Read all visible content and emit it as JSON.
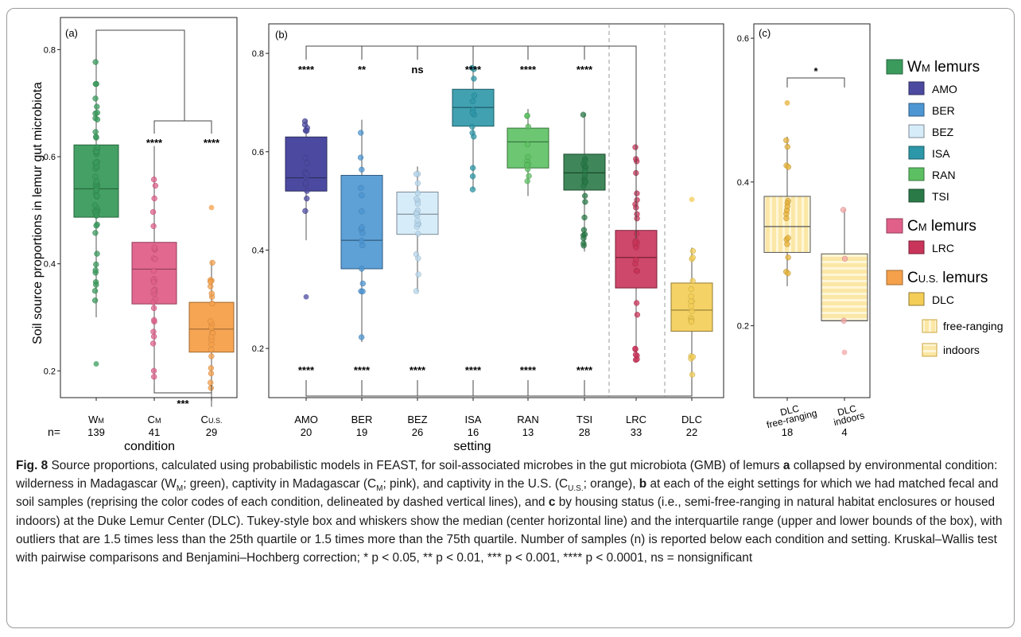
{
  "colors": {
    "WM": "#3a9b5c",
    "CM": "#e0608a",
    "CUS": "#f5a04a",
    "AMO": "#4b4aa0",
    "BER": "#4c96d3",
    "BEZ": "#cfe6f6",
    "ISA": "#2c97a8",
    "RAN": "#5cc062",
    "TSI": "#2a7a48",
    "LRC": "#c9345a",
    "DLC": "#f3cd55"
  },
  "y_axis_label": "Soil source proportions in lemur gut microbiota",
  "n_label": "n=",
  "chart_data": [
    {
      "type": "box",
      "panel_label": "(a)",
      "xlabel": "condition",
      "ylim": [
        0.15,
        0.86
      ],
      "y_ticks": [
        "0.2",
        "0.4",
        "0.6",
        "0.8"
      ],
      "categories": [
        {
          "key": "WM",
          "main": "W",
          "sub": "M",
          "n": "139",
          "min": 0.3,
          "q1": 0.487,
          "median": 0.54,
          "q3": 0.622,
          "max": 0.8,
          "outliers": [
            0.213
          ]
        },
        {
          "key": "CM",
          "main": "C",
          "sub": "M",
          "n": "41",
          "min": 0.173,
          "q1": 0.325,
          "median": 0.39,
          "q3": 0.44,
          "max": 0.62,
          "outliers": []
        },
        {
          "key": "CUS",
          "main": "C",
          "sub": "U.S.",
          "n": "29",
          "min": 0.133,
          "q1": 0.235,
          "median": 0.278,
          "q3": 0.328,
          "max": 0.405,
          "outliers": [
            0.505
          ]
        }
      ],
      "significance": {
        "top_bracket": "",
        "cm": "****",
        "cus": "****",
        "bottom": "***"
      }
    },
    {
      "type": "box",
      "panel_label": "(b)",
      "xlabel": "setting",
      "ylim": [
        0.1,
        0.86
      ],
      "y_ticks": [
        "0.2",
        "0.4",
        "0.6",
        "0.8"
      ],
      "categories": [
        {
          "key": "AMO",
          "n": "20",
          "min": 0.42,
          "q1": 0.52,
          "median": 0.547,
          "q3": 0.63,
          "max": 0.665,
          "outliers": [
            0.305
          ],
          "top": "****",
          "bottom": "****"
        },
        {
          "key": "BER",
          "n": "19",
          "min": 0.213,
          "q1": 0.362,
          "median": 0.42,
          "q3": 0.552,
          "max": 0.665,
          "outliers": [],
          "top": "**",
          "bottom": "****"
        },
        {
          "key": "BEZ",
          "n": "26",
          "min": 0.315,
          "q1": 0.432,
          "median": 0.473,
          "q3": 0.518,
          "max": 0.57,
          "outliers": [],
          "top": "ns",
          "bottom": "****"
        },
        {
          "key": "ISA",
          "n": "16",
          "min": 0.523,
          "q1": 0.652,
          "median": 0.69,
          "q3": 0.727,
          "max": 0.8,
          "outliers": [],
          "top": "****",
          "bottom": "****"
        },
        {
          "key": "RAN",
          "n": "13",
          "min": 0.51,
          "q1": 0.567,
          "median": 0.62,
          "q3": 0.648,
          "max": 0.687,
          "outliers": [],
          "top": "****",
          "bottom": "****"
        },
        {
          "key": "TSI",
          "n": "28",
          "min": 0.397,
          "q1": 0.522,
          "median": 0.557,
          "q3": 0.595,
          "max": 0.677,
          "outliers": [],
          "top": "****",
          "bottom": "****"
        },
        {
          "key": "LRC",
          "n": "33",
          "min": 0.173,
          "q1": 0.323,
          "median": 0.385,
          "q3": 0.44,
          "max": 0.622,
          "outliers": []
        },
        {
          "key": "DLC",
          "n": "22",
          "min": 0.135,
          "q1": 0.235,
          "median": 0.278,
          "q3": 0.333,
          "max": 0.405,
          "outliers": [
            0.503
          ]
        }
      ]
    },
    {
      "type": "box",
      "panel_label": "(c)",
      "ylim": [
        0.1,
        0.62
      ],
      "y_ticks": [
        "0.2",
        "0.4",
        "0.6"
      ],
      "categories": [
        {
          "key": "free",
          "label1": "DLC",
          "label2": "free-ranging",
          "n": "18",
          "min": 0.255,
          "q1": 0.302,
          "median": 0.338,
          "q3": 0.38,
          "max": 0.463,
          "outliers": [
            0.51
          ]
        },
        {
          "key": "indoors",
          "label1": "DLC",
          "label2": "indoors",
          "n": "4",
          "min": 0.207,
          "q1": 0.207,
          "median": 0.207,
          "q3": 0.3,
          "max": 0.362,
          "outliers": [
            0.163
          ]
        }
      ],
      "significance": "*"
    }
  ],
  "legend": {
    "groups": [
      {
        "key": "WM",
        "main": "W",
        "sub": "M",
        "tail": " lemurs",
        "items": [
          "AMO",
          "BER",
          "BEZ",
          "ISA",
          "RAN",
          "TSI"
        ]
      },
      {
        "key": "CM",
        "main": "C",
        "sub": "M",
        "tail": " lemurs",
        "items": [
          "LRC"
        ]
      },
      {
        "key": "CUS",
        "main": "C",
        "sub": "U.S.",
        "tail": " lemurs",
        "items": [
          "DLC"
        ]
      }
    ],
    "housing": [
      "free-ranging",
      "indoors"
    ]
  },
  "caption": {
    "fig_label": "Fig. 8",
    "t1": "  Source proportions, calculated using probabilistic models in FEAST, for soil-associated microbes in the gut  microbiota (GMB) of lemurs ",
    "a": "a",
    "t2": " collapsed by environmental condition: wilderness in Madagascar (W",
    "sub_m1": "M",
    "t3": "; green), captivity in Madagascar (C",
    "sub_m2": "M",
    "t4": "; pink), and captivity in the U.S. (C",
    "sub_us": "U.S.",
    "t5": "; orange), ",
    "b": "b",
    "t6": " at each of the eight settings for which we had matched fecal and soil samples (reprising the color codes of each condition, delineated by dashed vertical lines), and ",
    "c": "c",
    "t7": " by housing status (i.e., semi-free-ranging in natural habitat enclosures or housed indoors) at the Duke Lemur Center (DLC). Tukey-style box and whiskers show the median (center horizontal line) and the interquartile range (upper and lower bounds of the box), with outliers that are 1.5 times less than the 25th quartile or 1.5 times more than the 75th quartile. Number of samples (n) is reported below each condition and setting. Kruskal–Wallis test with pairwise comparisons and Benjamini–Hochberg correction; * p < 0.05, ** p < 0.01, *** p < 0.001, **** p < 0.0001, ns = nonsignificant"
  }
}
